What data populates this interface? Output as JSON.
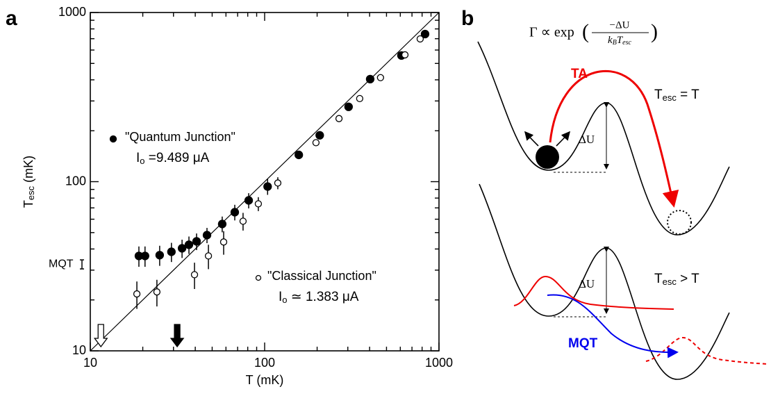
{
  "panel_labels": [
    "a",
    "b"
  ],
  "chart_data": {
    "type": "scatter",
    "x_label": "T (mK)",
    "y_label": {
      "main": "T",
      "sub": "esc",
      "unit": " (mK)"
    },
    "xlim": [
      10,
      1000
    ],
    "ylim": [
      10,
      1000
    ],
    "xticks": [
      10,
      100,
      1000
    ],
    "yticks": [
      10,
      100,
      1000
    ],
    "minor_xticks": [
      20,
      30,
      40,
      50,
      60,
      70,
      80,
      90,
      200,
      300,
      400,
      500,
      600,
      700,
      800,
      900
    ],
    "minor_yticks": [
      20,
      30,
      40,
      50,
      60,
      70,
      80,
      90,
      200,
      300,
      400,
      500,
      600,
      700,
      800,
      900
    ],
    "xlog": true,
    "ylog": true,
    "diagonal": true,
    "series": [
      {
        "name": "\"Quantum Junction\"",
        "color": "#000000",
        "marker": "filled",
        "current": {
          "symbol": "I",
          "sub": "o",
          "text": " =9.489 μA"
        },
        "x": [
          19.0,
          20.6,
          25.0,
          29.2,
          33.6,
          36.8,
          40.7,
          46.7,
          57.1,
          67.4,
          81,
          104,
          157,
          207,
          303,
          403,
          609,
          832
        ],
        "values": [
          36.4,
          36.4,
          36.8,
          38.5,
          40.4,
          42.4,
          44.4,
          48.3,
          56.2,
          66,
          77.5,
          93.6,
          144,
          188,
          277,
          404,
          557,
          746
        ],
        "errors": [
          5,
          5,
          5,
          5,
          5,
          5,
          5,
          5,
          6,
          7,
          8,
          10,
          null,
          null,
          null,
          null,
          null,
          null
        ]
      },
      {
        "name": "\"Classical Junction\"",
        "color": "#000000",
        "marker": "open",
        "current": {
          "symbol": "I",
          "sub": "o",
          "text": " ≃ 1.383 μA"
        },
        "x": [
          18.5,
          24.1,
          39.6,
          47.6,
          58.2,
          75.2,
          92,
          119,
          197,
          267,
          351,
          462,
          638,
          780
        ],
        "values": [
          21.7,
          22.3,
          28.2,
          36.4,
          44.0,
          58.4,
          74,
          98.2,
          170,
          236,
          310,
          412,
          562,
          698
        ],
        "errors": [
          4,
          4,
          5,
          6,
          7,
          7,
          7,
          8,
          null,
          null,
          null,
          null,
          null,
          null
        ]
      }
    ],
    "mqt": {
      "label": "MQT",
      "value": 32.5,
      "err": 2
    },
    "arrows": [
      {
        "x": 11.5,
        "fill": "open"
      },
      {
        "x": 31.5,
        "fill": "filled"
      }
    ]
  },
  "panel_b": {
    "formula": {
      "prefix": "Γ ∝ exp",
      "open": "(",
      "numerator": "−ΔU",
      "k": "k",
      "k_sub": "B",
      "t": "T",
      "t_sub": "esc",
      "close": ")"
    },
    "ta": "TA",
    "top_condition": {
      "T": "T",
      "sub": "esc",
      "rest": " = T"
    },
    "delta_u_top": "ΔU",
    "delta_u_bottom": "ΔU",
    "bottom_condition": {
      "T": "T",
      "sub": "esc",
      "rest": " > T"
    },
    "mqt": "MQT"
  }
}
